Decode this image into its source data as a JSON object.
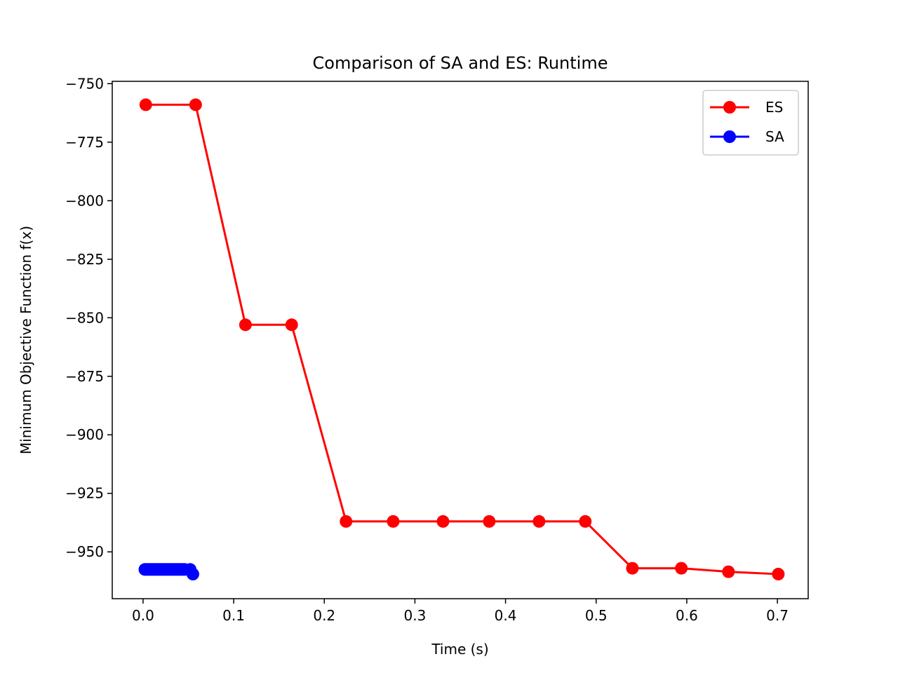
{
  "chart_data": {
    "type": "line",
    "title": "Comparison of SA and ES: Runtime",
    "xlabel": "Time (s)",
    "ylabel": "Minimum Objective Function f(x)",
    "xlim": [
      -0.034,
      0.734
    ],
    "ylim": [
      -970,
      -749
    ],
    "xticks": [
      0.0,
      0.1,
      0.2,
      0.3,
      0.4,
      0.5,
      0.6,
      0.7
    ],
    "xtick_labels": [
      "0.0",
      "0.1",
      "0.2",
      "0.3",
      "0.4",
      "0.5",
      "0.6",
      "0.7"
    ],
    "yticks": [
      -750,
      -775,
      -800,
      -825,
      -850,
      -875,
      -900,
      -925,
      -950
    ],
    "ytick_labels": [
      "−750",
      "−775",
      "−800",
      "−825",
      "−850",
      "−875",
      "−900",
      "−925",
      "−950"
    ],
    "grid": false,
    "legend_position": "top-right",
    "series": [
      {
        "name": "ES",
        "color": "#ff0000",
        "marker": "circle",
        "x": [
          0.003,
          0.058,
          0.113,
          0.164,
          0.224,
          0.276,
          0.331,
          0.382,
          0.437,
          0.488,
          0.54,
          0.594,
          0.646,
          0.701
        ],
        "y": [
          -759,
          -759,
          -853,
          -853,
          -937,
          -937,
          -937,
          -937,
          -937,
          -937,
          -957,
          -957,
          -958.5,
          -959.5
        ]
      },
      {
        "name": "SA",
        "color": "#0000ff",
        "marker": "circle",
        "x": [
          0.002,
          0.004,
          0.006,
          0.008,
          0.01,
          0.012,
          0.014,
          0.016,
          0.018,
          0.02,
          0.022,
          0.024,
          0.026,
          0.028,
          0.03,
          0.032,
          0.034,
          0.036,
          0.038,
          0.04,
          0.042,
          0.044,
          0.046,
          0.052,
          0.055
        ],
        "y": [
          -957.5,
          -957.5,
          -957.5,
          -957.5,
          -957.5,
          -957.5,
          -957.5,
          -957.5,
          -957.5,
          -957.5,
          -957.5,
          -957.5,
          -957.5,
          -957.5,
          -957.5,
          -957.5,
          -957.5,
          -957.5,
          -957.5,
          -957.5,
          -957.5,
          -957.5,
          -957.5,
          -957.5,
          -959.5
        ]
      }
    ]
  }
}
